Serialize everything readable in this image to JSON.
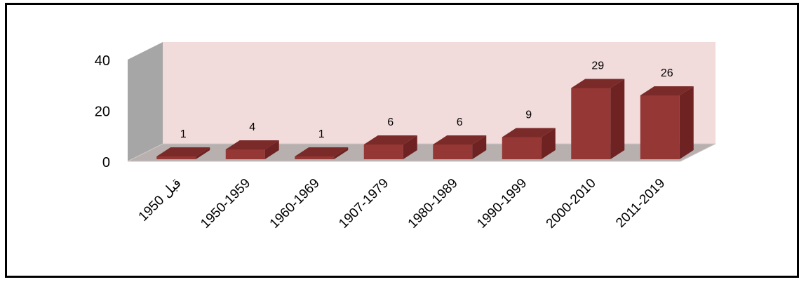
{
  "chart_data": {
    "type": "bar",
    "style": "3d-column",
    "categories": [
      "قبل 1950",
      "1950-1959",
      "1960-1969",
      "1907-1979",
      "1980-1989",
      "1990-1999",
      "2000-2010",
      "2011-2019"
    ],
    "values": [
      1,
      4,
      1,
      6,
      6,
      9,
      29,
      26
    ],
    "y_ticks": [
      "0",
      "20",
      "40"
    ],
    "ylim": [
      0,
      40
    ],
    "grid": false,
    "legend": "none",
    "colors": {
      "bar_front": "#953735",
      "bar_top": "#7a2a28",
      "bar_side": "#6e2322",
      "back_wall": "#f2dcdb",
      "side_wall": "#a6a6a6",
      "floor": "#b8b0ae",
      "frame": "#000000"
    }
  }
}
